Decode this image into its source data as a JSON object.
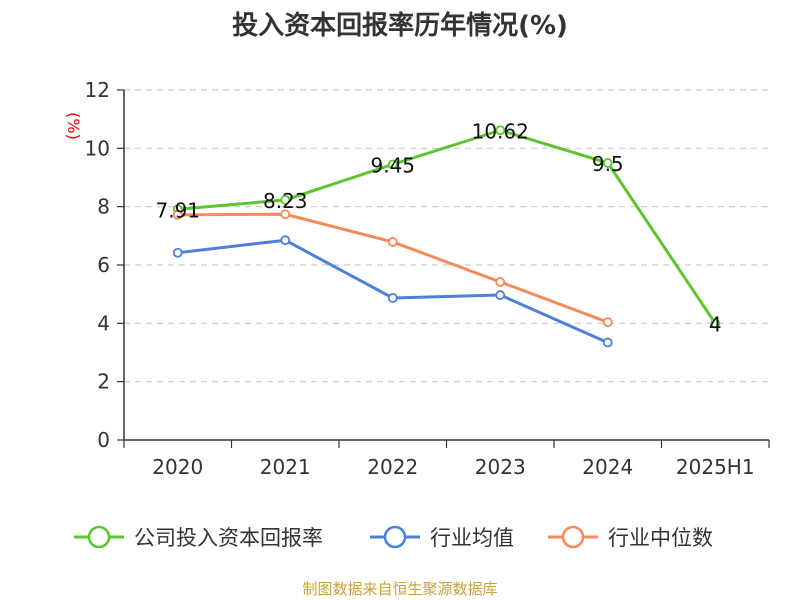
{
  "chart_data": {
    "type": "line",
    "title": "投入资本回报率历年情况(%)",
    "ylabel": "(%)",
    "xlabel": "",
    "categories": [
      "2020",
      "2021",
      "2022",
      "2023",
      "2024",
      "2025H1"
    ],
    "ylim": [
      0,
      12
    ],
    "yticks": [
      0,
      2,
      4,
      6,
      8,
      10,
      12
    ],
    "grid": true,
    "legend_position": "bottom",
    "series": [
      {
        "name": "公司投入资本回报率",
        "color": "#5cc42f",
        "labels": true,
        "values": [
          7.91,
          8.23,
          9.45,
          10.62,
          9.5,
          4
        ]
      },
      {
        "name": "行业均值",
        "color": "#4e80d8",
        "labels": false,
        "values": [
          6.42,
          6.85,
          4.87,
          4.97,
          3.34,
          null
        ]
      },
      {
        "name": "行业中位数",
        "color": "#f58a5a",
        "labels": false,
        "values": [
          7.72,
          7.74,
          6.79,
          5.42,
          4.04,
          null
        ]
      }
    ]
  },
  "source": "制图数据来自恒生聚源数据库"
}
